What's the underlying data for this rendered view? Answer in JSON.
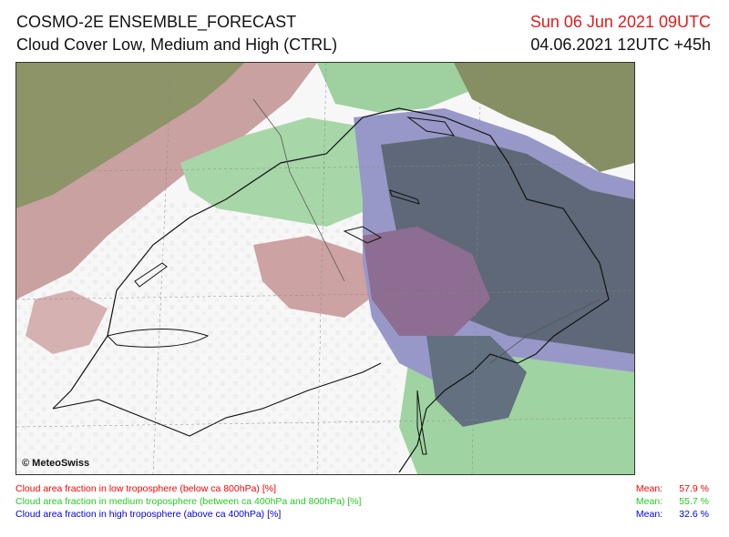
{
  "header": {
    "model_title": "COSMO-2E ENSEMBLE_FORECAST",
    "product_title": "Cloud Cover Low, Medium and High (CTRL)",
    "valid_time": "Sun 06 Jun 2021 09UTC",
    "run_time": "04.06.2021 12UTC +45h"
  },
  "map": {
    "copyright": "© MeteoSwiss",
    "layers": [
      "low-cloud",
      "medium-cloud",
      "high-cloud"
    ],
    "colors": {
      "low": "#c89a9a",
      "medium": "#9ccf9e",
      "high": "#9a9acc",
      "low_medium": "#7f8c5c",
      "all": "#5f6878",
      "low_high": "#8a6a8e"
    }
  },
  "legend": [
    {
      "label": "Cloud area fraction in low troposphere (below ca 800hPa) [%]",
      "mean_label": "Mean:",
      "mean": "57.9 %",
      "color": "#ff0000"
    },
    {
      "label": "Cloud area fraction in medium troposphere (between ca 400hPa and 800hPa) [%]",
      "mean_label": "Mean:",
      "mean": "55.7 %",
      "color": "#22cc22"
    },
    {
      "label": "Cloud area fraction in high troposphere (above ca 400hPa) [%]",
      "mean_label": "Mean:",
      "mean": "32.6 %",
      "color": "#0000ee"
    }
  ]
}
